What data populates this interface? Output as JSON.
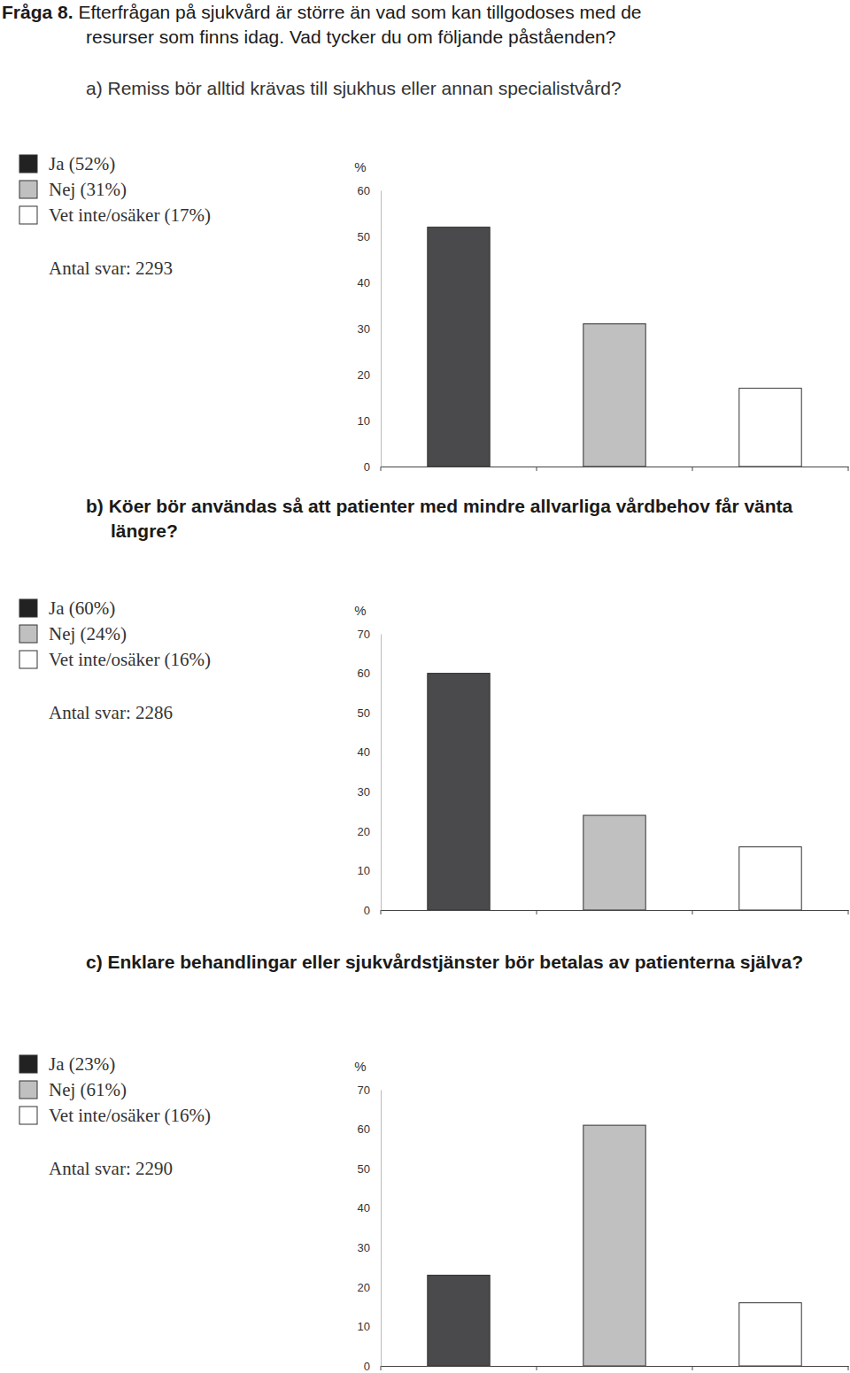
{
  "question_label": "Fråga 8.",
  "heading_lines": [
    "Efterfrågan på sjukvård är större än vad som kan tillgodoses med de",
    "resurser som finns idag. Vad tycker du om följande påståenden?"
  ],
  "chart_data": [
    {
      "type": "bar",
      "title": "a) Remiss bör alltid krävas till sjukhus eller annan specialistvård?",
      "y_label": "%",
      "categories": [
        null
      ],
      "series": [
        {
          "name": "Ja (52%)",
          "color": "#4a4a4c",
          "values": [
            52
          ]
        },
        {
          "name": "Nej (31%)",
          "color": "#c0c0c0",
          "values": [
            31
          ]
        },
        {
          "name": "Vet inte/osäker (17%)",
          "color": "#ffffff",
          "values": [
            17
          ]
        }
      ],
      "annotations": [
        "Antal svar: 2293"
      ],
      "ylim": [
        0,
        60
      ],
      "yticks": [
        0,
        10,
        20,
        30,
        40,
        50,
        60
      ],
      "grid": false,
      "legend": "left"
    },
    {
      "type": "bar",
      "title": "b) Köer bör användas så att patienter med mindre allvarliga vårdbehov får vänta längre?",
      "y_label": "%",
      "categories": [
        null
      ],
      "series": [
        {
          "name": "Ja (60%)",
          "color": "#4a4a4c",
          "values": [
            60
          ]
        },
        {
          "name": "Nej (24%)",
          "color": "#c0c0c0",
          "values": [
            24
          ]
        },
        {
          "name": "Vet inte/osäker (16%)",
          "color": "#ffffff",
          "values": [
            16
          ]
        }
      ],
      "annotations": [
        "Antal svar: 2286"
      ],
      "ylim": [
        0,
        70
      ],
      "yticks": [
        0,
        10,
        20,
        30,
        40,
        50,
        60,
        70
      ],
      "grid": false,
      "legend": "left"
    },
    {
      "type": "bar",
      "title": "c) Enklare behandlingar eller sjukvårdstjänster bör betalas av patienterna själva?",
      "y_label": "%",
      "categories": [
        null
      ],
      "series": [
        {
          "name": "Ja (23%)",
          "color": "#4a4a4c",
          "values": [
            23
          ]
        },
        {
          "name": "Nej (61%)",
          "color": "#c0c0c0",
          "values": [
            61
          ]
        },
        {
          "name": "Vet inte/osäker (16%)",
          "color": "#ffffff",
          "values": [
            16
          ]
        }
      ],
      "annotations": [
        "Antal svar: 2290"
      ],
      "ylim": [
        0,
        70
      ],
      "yticks": [
        0,
        10,
        20,
        30,
        40,
        50,
        60,
        70
      ],
      "grid": false,
      "legend": "left"
    }
  ]
}
